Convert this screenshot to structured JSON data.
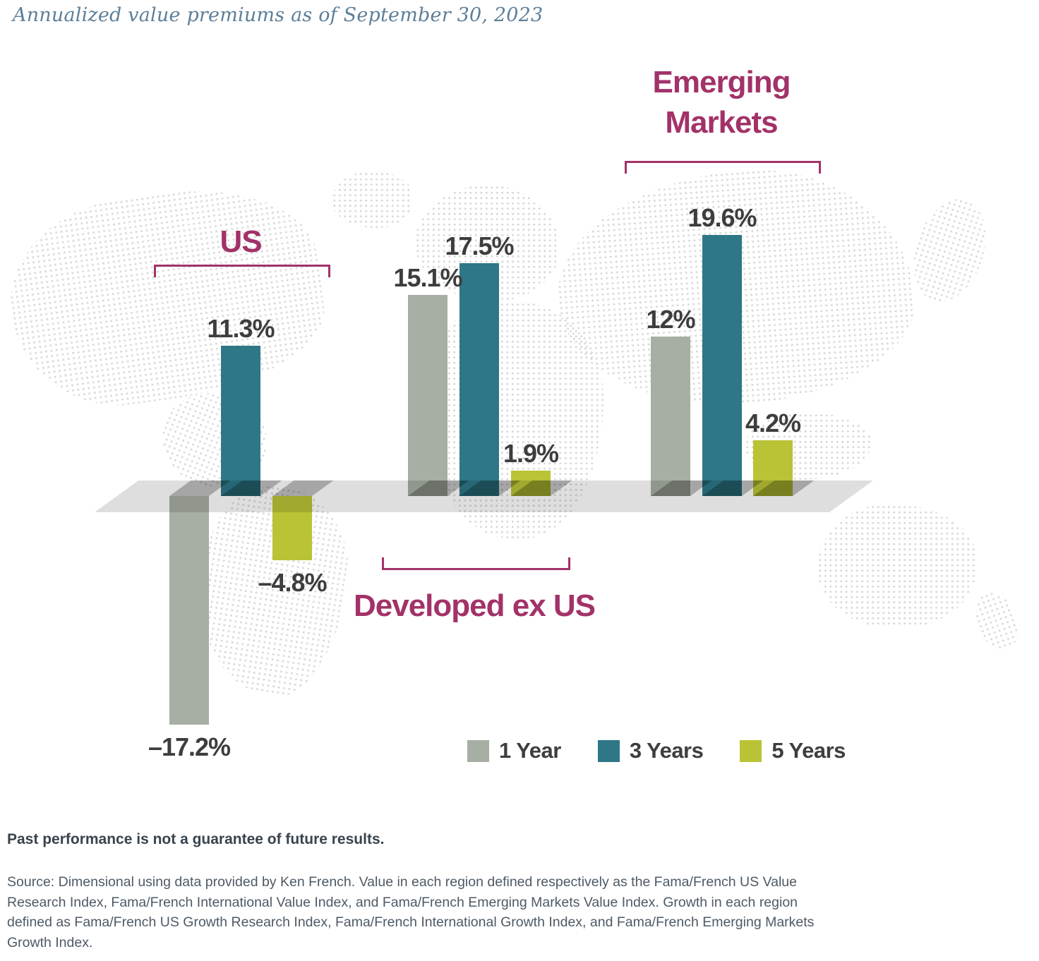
{
  "title": "Annualized value premiums as of September 30, 2023",
  "chart_data": {
    "type": "bar",
    "unit": "percent",
    "title": "Annualized value premiums as of September 30, 2023",
    "baseline": 0,
    "series_names": [
      "1 Year",
      "3 Years",
      "5 Years"
    ],
    "series_colors": [
      "#a7aea3",
      "#2d7787",
      "#b9c335"
    ],
    "group_label_color": "#a23268",
    "groups": [
      {
        "label": "US",
        "values": [
          -17.2,
          11.3,
          -4.8
        ],
        "labels": [
          "–17.2%",
          "11.3%",
          "–4.8%"
        ]
      },
      {
        "label": "Developed ex US",
        "values": [
          15.1,
          17.5,
          1.9
        ],
        "labels": [
          "15.1%",
          "17.5%",
          "1.9%"
        ]
      },
      {
        "label": "Emerging Markets",
        "values": [
          12,
          19.6,
          4.2
        ],
        "labels": [
          "12%",
          "19.6%",
          "4.2%"
        ]
      }
    ]
  },
  "legend": {
    "items": [
      {
        "label": "1 Year",
        "color": "#a7aea3"
      },
      {
        "label": "3 Years",
        "color": "#2d7787"
      },
      {
        "label": "5 Years",
        "color": "#b9c335"
      }
    ]
  },
  "footer": {
    "disclaimer": "Past performance is not a guarantee of future results.",
    "source_lines": [
      "Source: Dimensional using data provided by Ken French. Value in each region defined respectively as the Fama/French US Value",
      "Research Index, Fama/French International Value Index, and Fama/French Emerging Markets Value Index. Growth in each region",
      "defined as Fama/French US Growth Research Index, Fama/French International Growth Index, and Fama/French Emerging Markets",
      "Growth Index."
    ]
  }
}
